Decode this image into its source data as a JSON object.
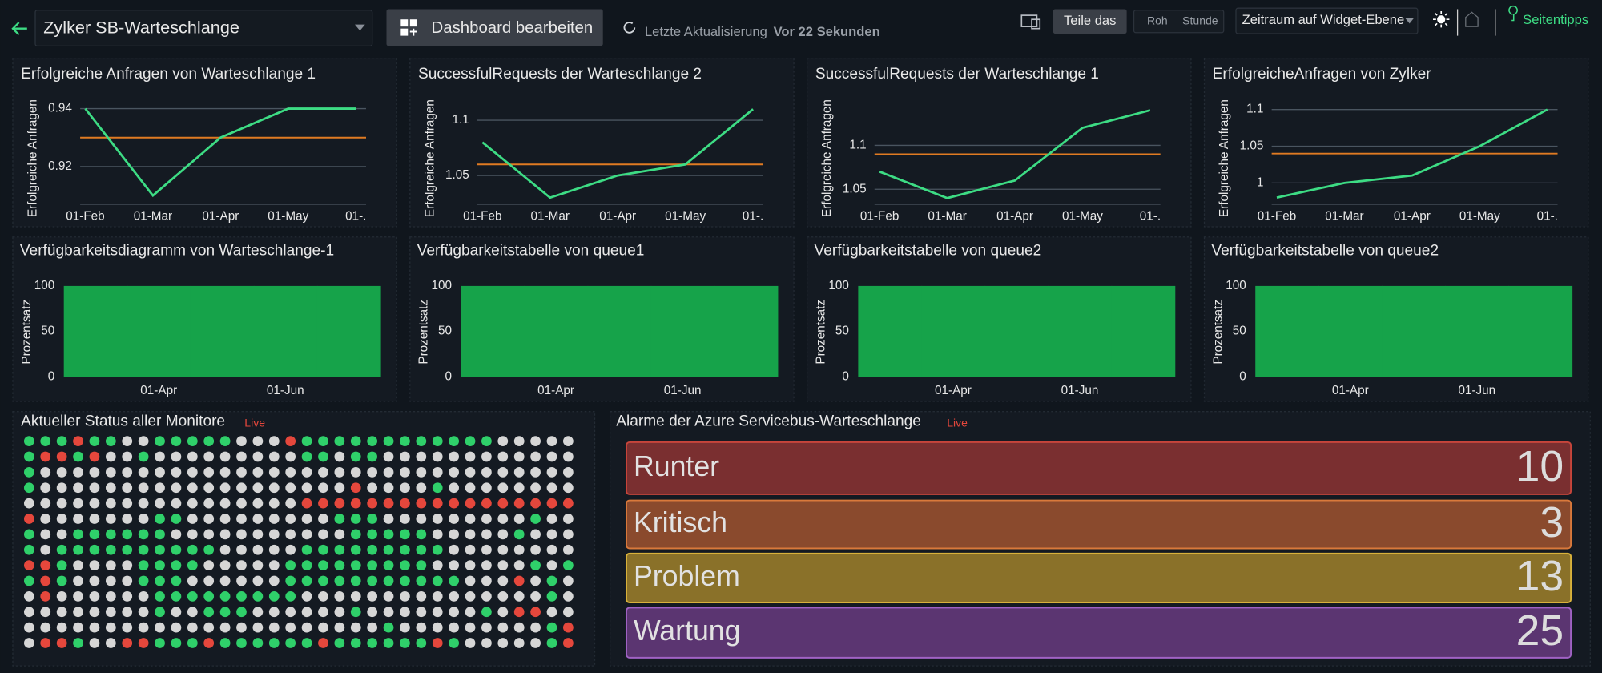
{
  "header": {
    "title": "Zylker SB-Warteschlange",
    "edit_button": "Dashboard bearbeiten",
    "last_update_label": "Letzte Aktualisierung",
    "last_update_value": "Vor 22 Sekunden",
    "share": "Teile das",
    "raw": "Roh",
    "hour": "Stunde",
    "period": "Zeitraum auf Widget-Ebene",
    "tips": "Seitentipps"
  },
  "chart_data": [
    {
      "type": "line",
      "title": "Erfolgreiche Anfragen von Warteschlange 1",
      "ylabel": "Erfolgreiche Anfragen",
      "categories": [
        "01-Feb",
        "01-Mar",
        "01-Apr",
        "01-May",
        "01-."
      ],
      "values": [
        0.94,
        0.91,
        0.93,
        0.94,
        0.94
      ],
      "color": "#3ddc84",
      "threshold": 0.93,
      "threshold_color": "#e07b22",
      "ylim": [
        0.907,
        0.944
      ],
      "yticks": [
        0.92,
        0.94
      ],
      "grid": true
    },
    {
      "type": "line",
      "title": "SuccessfulRequests der Warteschlange 2",
      "ylabel": "Erfolgreiche Anfragen",
      "categories": [
        "01-Feb",
        "01-Mar",
        "01-Apr",
        "01-May",
        "01-."
      ],
      "values": [
        1.08,
        1.03,
        1.05,
        1.06,
        1.11
      ],
      "color": "#3ddc84",
      "threshold": 1.06,
      "threshold_color": "#e07b22",
      "ylim": [
        1.024,
        1.121
      ],
      "yticks": [
        1.05,
        1.1
      ],
      "grid": true
    },
    {
      "type": "line",
      "title": "SuccessfulRequests der Warteschlange 1",
      "ylabel": "Erfolgreiche Anfragen",
      "categories": [
        "01-Feb",
        "01-Mar",
        "01-Apr",
        "01-May",
        "01-."
      ],
      "values": [
        1.07,
        1.04,
        1.06,
        1.12,
        1.14
      ],
      "color": "#3ddc84",
      "threshold": 1.09,
      "threshold_color": "#e07b22",
      "ylim": [
        1.033,
        1.155
      ],
      "yticks": [
        1.05,
        1.1
      ],
      "grid": true
    },
    {
      "type": "line",
      "title": "ErfolgreicheAnfragen von Zylker",
      "ylabel": "Erfolgreiche Anfragen",
      "categories": [
        "01-Feb",
        "01-Mar",
        "01-Apr",
        "01-May",
        "01-."
      ],
      "values": [
        0.98,
        1.0,
        1.01,
        1.05,
        1.1
      ],
      "color": "#3ddc84",
      "threshold": 1.04,
      "threshold_color": "#e07b22",
      "ylim": [
        0.971,
        1.117
      ],
      "yticks": [
        1,
        1.05,
        1.1
      ],
      "grid": true
    },
    {
      "type": "bar",
      "title": "Verfügbarkeitsdiagramm von Warteschlange-1",
      "ylabel": "Prozentsatz",
      "categories": [
        null,
        "01-Apr",
        null,
        "01-Jun",
        null
      ],
      "values": [
        100,
        100,
        100,
        100,
        100
      ],
      "color": "#16a34a",
      "ylim": [
        0,
        100
      ],
      "yticks": [
        0,
        50,
        100
      ]
    },
    {
      "type": "bar",
      "title": "Verfügbarkeitstabelle von queue1",
      "ylabel": "Prozentsatz",
      "categories": [
        null,
        "01-Apr",
        null,
        "01-Jun",
        null
      ],
      "values": [
        100,
        100,
        100,
        100,
        100
      ],
      "color": "#16a34a",
      "ylim": [
        0,
        100
      ],
      "yticks": [
        0,
        50,
        100
      ]
    },
    {
      "type": "bar",
      "title": "Verfügbarkeitstabelle von queue2",
      "ylabel": "Prozentsatz",
      "categories": [
        null,
        "01-Apr",
        null,
        "01-Jun",
        null
      ],
      "values": [
        100,
        100,
        100,
        100,
        100
      ],
      "color": "#16a34a",
      "ylim": [
        0,
        100
      ],
      "yticks": [
        0,
        50,
        100
      ]
    },
    {
      "type": "bar",
      "title": "Verfügbarkeitstabelle von queue2",
      "ylabel": "Prozentsatz",
      "categories": [
        null,
        "01-Apr",
        null,
        "01-Jun",
        null
      ],
      "values": [
        100,
        100,
        100,
        100,
        100
      ],
      "color": "#16a34a",
      "ylim": [
        0,
        100
      ],
      "yticks": [
        0,
        50,
        100
      ]
    }
  ],
  "status": {
    "title": "Aktueller Status aller Monitore",
    "live": "Live",
    "colors": {
      "g": "#2fd06a",
      "r": "#e5473c",
      "w": "#d6d6d6"
    },
    "rows": [
      "gggrggwwgggggwwwrggggggggggggwwwww",
      "grrgrwwgwwwwwwwwwggwggwwwwwwwwwwww",
      "gwwwwwwwwwwwwwwwwwwwwwwwwwwwwwwwww",
      "gwwwwwwwwwwwwwwwwwwwrwwwwgwwwwwwww",
      "wwwwwwwwwwwwwwwwwrrrrrrrrrrrrrrrrr",
      "rwwwwwwwggwwwwwwwwwgggwwwwwwwwwgww",
      "gwwggggggwwwwwwwwwwwgggggwwwwwgwww",
      "gwggggggggggwwwwwgggggggggwwwwwwww",
      "rrgwwwwggggwwwwwgggggggggwwwwwwgwg",
      "grgwwwwgggwwwwwwgggggggggggwwwrwgw",
      "wrwwwwwwgggggggggwwwwwwwwwwwwwwwgw",
      "wwwwwwwwgwwgggwwwwwwgwwwwwwwgwrrww",
      "wwwwwwwwwwwwwwwwwwwwwwgwwwwwwwwwgr",
      "wrrgwwrrgggrggggggrggggggrgwwwwwgr"
    ]
  },
  "alarms": {
    "title": "Alarme der Azure Servicebus-Warteschlange",
    "live": "Live",
    "items": [
      {
        "label": "Runter",
        "value": 10,
        "fill": "#7a2f30",
        "border": "#c7453b"
      },
      {
        "label": "Kritisch",
        "value": 3,
        "fill": "#8a4a2d",
        "border": "#d9793b"
      },
      {
        "label": "Problem",
        "value": 13,
        "fill": "#8a7129",
        "border": "#d9b23b"
      },
      {
        "label": "Wartung",
        "value": 25,
        "fill": "#5b3571",
        "border": "#a062c4"
      }
    ]
  }
}
